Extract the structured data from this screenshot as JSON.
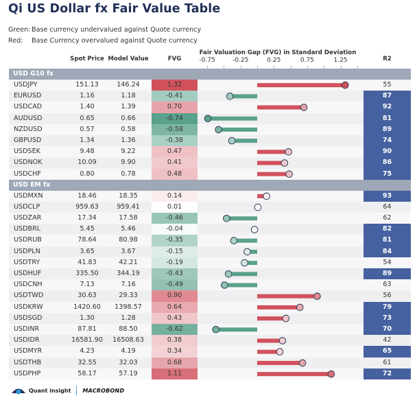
{
  "title": "Qi US Dollar fx Fair Value Table",
  "legend": [
    {
      "key": "Green:",
      "text": "Base currency undervalued against Quote currency"
    },
    {
      "key": "Red:",
      "text": "Base Currency overvalued against Quote currency"
    }
  ],
  "columns": {
    "spot": "Spot Price",
    "model": "Model Value",
    "fvg": "FVG",
    "axis_title": "Fair Valuation Gap (FVG) in Standard Deviation",
    "r2": "R2"
  },
  "colors": {
    "bar_positive": "#d1525d",
    "bar_negative": "#5aa18c",
    "r2_highlight": "#4661a0",
    "group_header": "#9ea8b7",
    "title": "#1f2f57"
  },
  "footer": {
    "brand1": "Quant insight",
    "brand2": "MACROBOND"
  },
  "chart_data": {
    "type": "table",
    "title": "Qi US Dollar fx Fair Value Table",
    "xlabel": "Fair Valuation Gap (FVG) in Standard Deviation",
    "x_ticks": [
      "-0.75",
      "-0.25",
      "0.25",
      "0.75",
      "1.25"
    ],
    "x_tick_values": [
      -0.75,
      -0.25,
      0.25,
      0.75,
      1.25
    ],
    "xlim": [
      -0.9,
      1.6
    ],
    "r2_highlight_threshold": 65,
    "groups": [
      {
        "name": "USD G10 fx",
        "rows": [
          {
            "pair": "USDJPY",
            "spot": "151.13",
            "model": "146.24",
            "fvg": 1.32,
            "r2": 55
          },
          {
            "pair": "EURUSD",
            "spot": "1.16",
            "model": "1.18",
            "fvg": -0.41,
            "r2": 87
          },
          {
            "pair": "USDCAD",
            "spot": "1.40",
            "model": "1.39",
            "fvg": 0.7,
            "r2": 92
          },
          {
            "pair": "AUDUSD",
            "spot": "0.65",
            "model": "0.66",
            "fvg": -0.74,
            "r2": 81
          },
          {
            "pair": "NZDUSD",
            "spot": "0.57",
            "model": "0.58",
            "fvg": -0.58,
            "r2": 89
          },
          {
            "pair": "GBPUSD",
            "spot": "1.34",
            "model": "1.36",
            "fvg": -0.38,
            "r2": 74
          },
          {
            "pair": "USDSEK",
            "spot": "9.48",
            "model": "9.22",
            "fvg": 0.47,
            "r2": 90
          },
          {
            "pair": "USDNOK",
            "spot": "10.09",
            "model": "9.90",
            "fvg": 0.41,
            "r2": 86
          },
          {
            "pair": "USDCHF",
            "spot": "0.80",
            "model": "0.78",
            "fvg": 0.48,
            "r2": 75
          }
        ]
      },
      {
        "name": "USD EM fx",
        "rows": [
          {
            "pair": "USDMXN",
            "spot": "18.46",
            "model": "18.35",
            "fvg": 0.14,
            "r2": 93
          },
          {
            "pair": "USDCLP",
            "spot": "959.63",
            "model": "959.41",
            "fvg": 0.01,
            "r2": 64
          },
          {
            "pair": "USDZAR",
            "spot": "17.34",
            "model": "17.58",
            "fvg": -0.46,
            "r2": 62
          },
          {
            "pair": "USDBRL",
            "spot": "5.45",
            "model": "5.46",
            "fvg": -0.04,
            "r2": 82
          },
          {
            "pair": "USDRUB",
            "spot": "78.64",
            "model": "80.98",
            "fvg": -0.35,
            "r2": 81
          },
          {
            "pair": "USDPLN",
            "spot": "3.65",
            "model": "3.67",
            "fvg": -0.15,
            "r2": 84
          },
          {
            "pair": "USDTRY",
            "spot": "41.83",
            "model": "42.21",
            "fvg": -0.19,
            "r2": 54
          },
          {
            "pair": "USDHUF",
            "spot": "335.50",
            "model": "344.19",
            "fvg": -0.43,
            "r2": 89
          },
          {
            "pair": "USDCNH",
            "spot": "7.13",
            "model": "7.16",
            "fvg": -0.49,
            "r2": 63
          },
          {
            "pair": "USDTWD",
            "spot": "30.63",
            "model": "29.33",
            "fvg": 0.9,
            "r2": 56
          },
          {
            "pair": "USDKRW",
            "spot": "1420.60",
            "model": "1398.57",
            "fvg": 0.64,
            "r2": 79
          },
          {
            "pair": "USDSGD",
            "spot": "1.30",
            "model": "1.28",
            "fvg": 0.43,
            "r2": 73
          },
          {
            "pair": "USDINR",
            "spot": "87.81",
            "model": "88.50",
            "fvg": -0.62,
            "r2": 70
          },
          {
            "pair": "USDIDR",
            "spot": "16581.90",
            "model": "16508.63",
            "fvg": 0.38,
            "r2": 42
          },
          {
            "pair": "USDMYR",
            "spot": "4.23",
            "model": "4.19",
            "fvg": 0.34,
            "r2": 65
          },
          {
            "pair": "USDTHB",
            "spot": "32.55",
            "model": "32.03",
            "fvg": 0.68,
            "r2": 61
          },
          {
            "pair": "USDPHP",
            "spot": "58.17",
            "model": "57.19",
            "fvg": 1.11,
            "r2": 72
          }
        ]
      }
    ]
  }
}
